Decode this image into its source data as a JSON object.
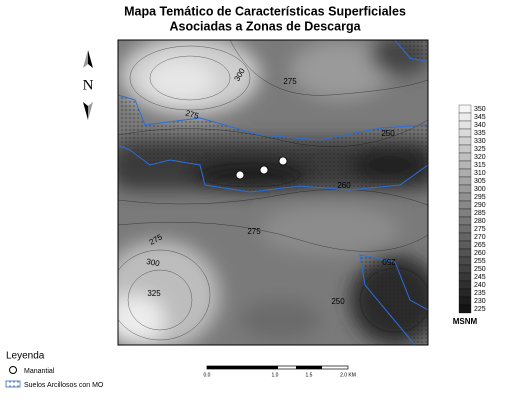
{
  "title": [
    "Mapa Temático de Características Superficiales",
    "Asociadas a Zonas de Descarga"
  ],
  "north_label": "N",
  "contour_labels": [
    "300",
    "275",
    "275",
    "250",
    "260",
    "275",
    "275",
    "300",
    "325",
    "250",
    "250"
  ],
  "colorbar": {
    "labels": [
      350,
      345,
      340,
      335,
      330,
      325,
      320,
      315,
      310,
      305,
      300,
      295,
      290,
      285,
      280,
      275,
      270,
      265,
      260,
      255,
      250,
      245,
      240,
      235,
      230,
      225
    ],
    "unit": "MSNM"
  },
  "scale_bar": [
    "0.0",
    "1.0",
    "1.5",
    "2.0 KM"
  ],
  "legend": {
    "title": "Leyenda",
    "items": [
      "Manantial",
      "Suelos Arcillosos con MO"
    ]
  }
}
